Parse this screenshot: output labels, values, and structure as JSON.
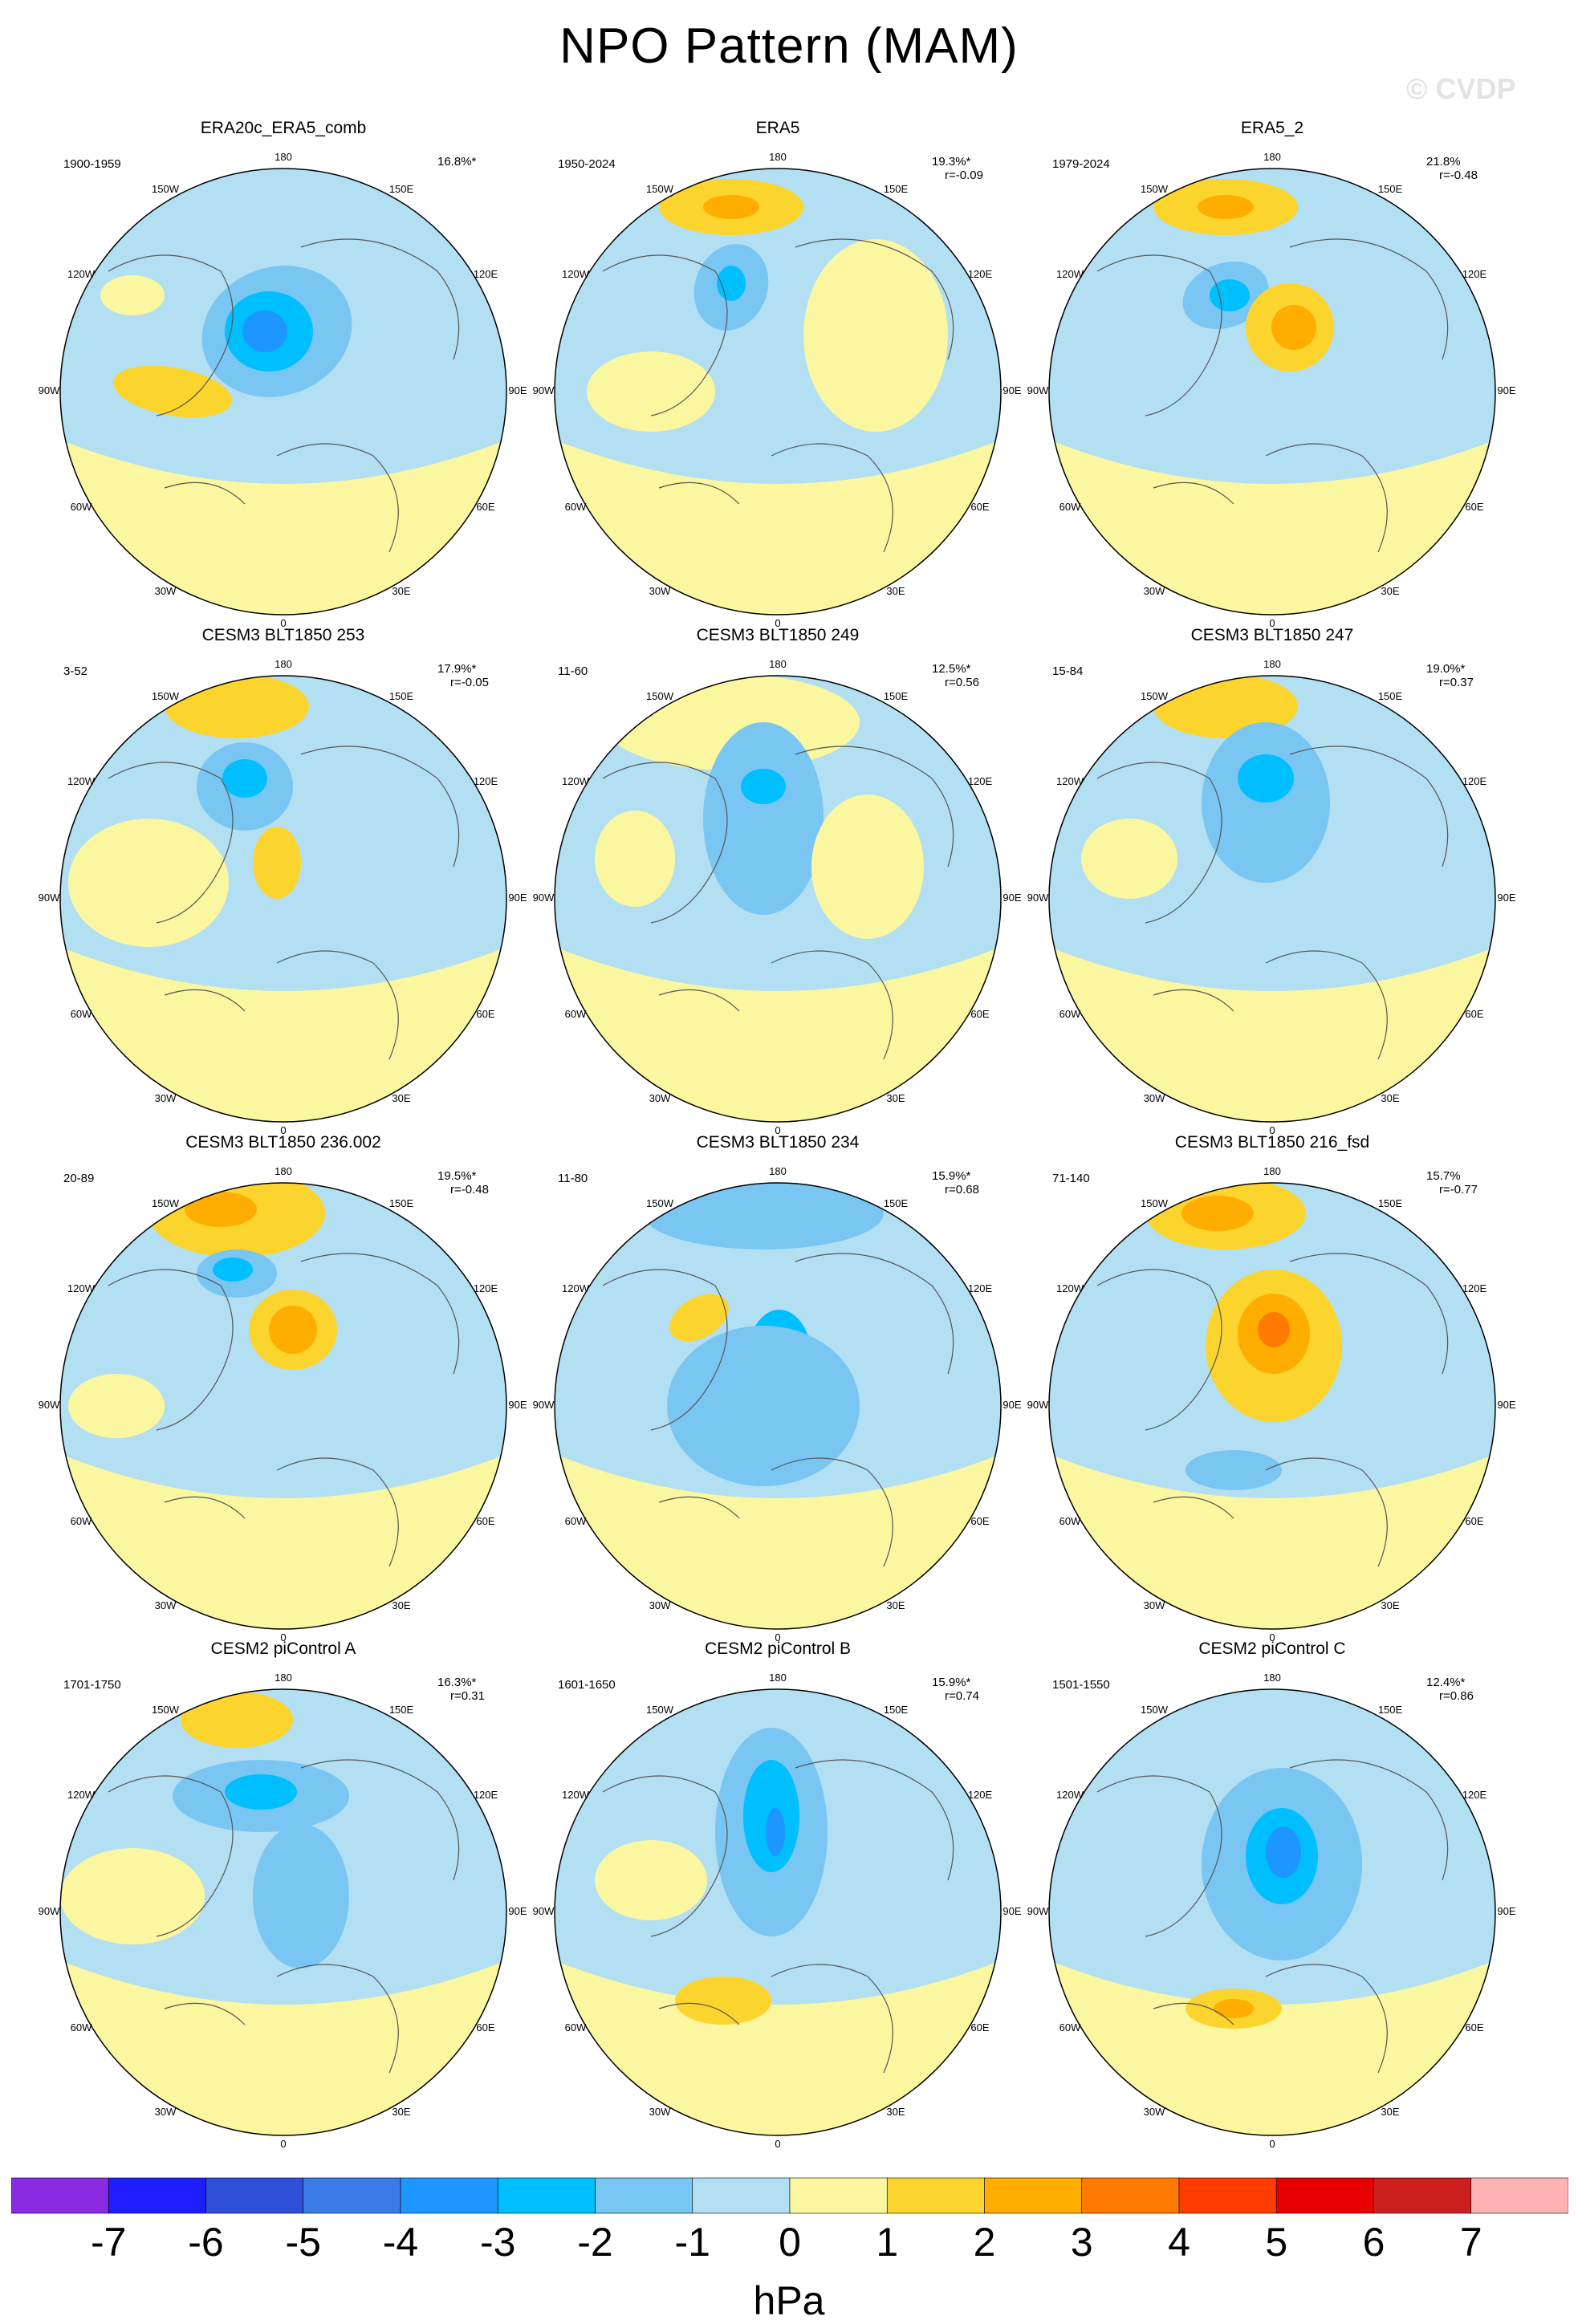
{
  "title": "NPO Pattern (MAM)",
  "watermark": "© CVDP",
  "units": "hPa",
  "longitude_labels": [
    "180",
    "150E",
    "120E",
    "90E",
    "60E",
    "30E",
    "0",
    "30W",
    "60W",
    "90W",
    "120W",
    "150W"
  ],
  "colorbar": {
    "colors": [
      "#8a2be2",
      "#1e1eff",
      "#2e4fd6",
      "#3a7be8",
      "#1e96ff",
      "#00bfff",
      "#79c6f2",
      "#b3dff2",
      "#fbf7a0",
      "#fcd42e",
      "#ffad00",
      "#ff7a00",
      "#ff3c00",
      "#e60000",
      "#cc1f1f",
      "#ffb3b3"
    ],
    "labels": [
      "-7",
      "-6",
      "-5",
      "-4",
      "-3",
      "-2",
      "-1",
      "0",
      "1",
      "2",
      "3",
      "4",
      "5",
      "6",
      "7"
    ]
  },
  "chart_data": {
    "type": "heatmap",
    "projection": "north polar stereographic",
    "variable": "sea level pressure anomaly",
    "units": "hPa",
    "colorbar_range": [
      -7,
      7
    ],
    "panels": [
      {
        "title": "ERA20c_ERA5_comb",
        "years": "1900-1959",
        "pct": "16.8%*",
        "r": ""
      },
      {
        "title": "ERA5",
        "years": "1950-2024",
        "pct": "19.3%*",
        "r": "r=-0.09"
      },
      {
        "title": "ERA5_2",
        "years": "1979-2024",
        "pct": "21.8%",
        "r": "r=-0.48"
      },
      {
        "title": "CESM3 BLT1850 253",
        "years": "3-52",
        "pct": "17.9%*",
        "r": "r=-0.05"
      },
      {
        "title": "CESM3 BLT1850 249",
        "years": "11-60",
        "pct": "12.5%*",
        "r": "r=0.56"
      },
      {
        "title": "CESM3 BLT1850 247",
        "years": "15-84",
        "pct": "19.0%*",
        "r": "r=0.37"
      },
      {
        "title": "CESM3 BLT1850 236.002",
        "years": "20-89",
        "pct": "19.5%*",
        "r": "r=-0.48"
      },
      {
        "title": "CESM3 BLT1850 234",
        "years": "11-80",
        "pct": "15.9%*",
        "r": "r=0.68"
      },
      {
        "title": "CESM3 BLT1850 216_fsd",
        "years": "71-140",
        "pct": "15.7%",
        "r": "r=-0.77"
      },
      {
        "title": "CESM2 piControl A",
        "years": "1701-1750",
        "pct": "16.3%*",
        "r": "r=0.31"
      },
      {
        "title": "CESM2 piControl B",
        "years": "1601-1650",
        "pct": "15.9%*",
        "r": "r=0.74"
      },
      {
        "title": "CESM2 piControl C",
        "years": "1501-1550",
        "pct": "12.4%*",
        "r": "r=0.86"
      }
    ]
  }
}
